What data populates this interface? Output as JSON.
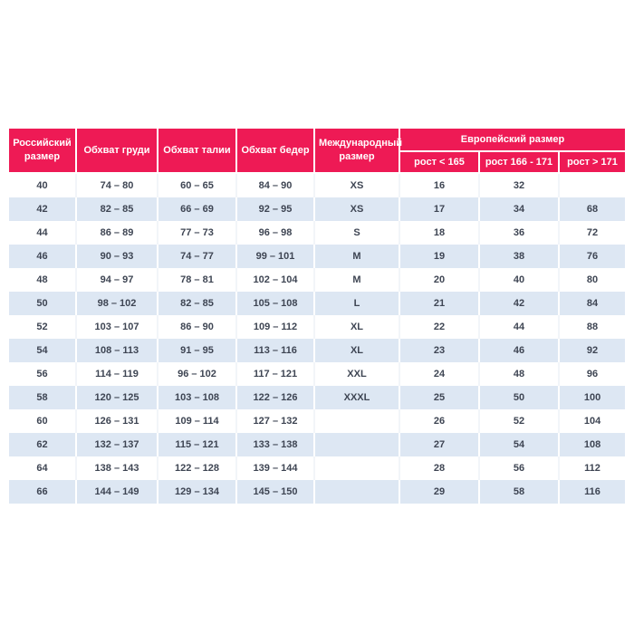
{
  "colors": {
    "header_bg": "#EE1A55",
    "header_text": "#FFFFFF",
    "row_alt_bg": "#DDE7F3",
    "cell_text": "#3E4553",
    "page_bg": "#FFFFFF"
  },
  "table": {
    "header": {
      "russian_size": "Российский размер",
      "chest": "Обхват груди",
      "waist": "Обхват талии",
      "hips": "Обхват бедер",
      "international_size": "Международный размер",
      "european_size": "Европейский размер",
      "height_lt_165": "рост < 165",
      "height_166_171": "рост 166 - 171",
      "height_gt_171": "рост > 171"
    },
    "rows": [
      [
        "40",
        "74 – 80",
        "60 – 65",
        "84 – 90",
        "XS",
        "16",
        "32",
        ""
      ],
      [
        "42",
        "82 – 85",
        "66 – 69",
        "92 – 95",
        "XS",
        "17",
        "34",
        "68"
      ],
      [
        "44",
        "86 – 89",
        "77 – 73",
        "96 – 98",
        "S",
        "18",
        "36",
        "72"
      ],
      [
        "46",
        "90 – 93",
        "74 – 77",
        "99 – 101",
        "M",
        "19",
        "38",
        "76"
      ],
      [
        "48",
        "94 – 97",
        "78 – 81",
        "102 – 104",
        "M",
        "20",
        "40",
        "80"
      ],
      [
        "50",
        "98 – 102",
        "82 – 85",
        "105 – 108",
        "L",
        "21",
        "42",
        "84"
      ],
      [
        "52",
        "103 – 107",
        "86 – 90",
        "109 – 112",
        "XL",
        "22",
        "44",
        "88"
      ],
      [
        "54",
        "108 – 113",
        "91 – 95",
        "113 – 116",
        "XL",
        "23",
        "46",
        "92"
      ],
      [
        "56",
        "114 – 119",
        "96 – 102",
        "117 – 121",
        "XXL",
        "24",
        "48",
        "96"
      ],
      [
        "58",
        "120 – 125",
        "103 – 108",
        "122 – 126",
        "XXXL",
        "25",
        "50",
        "100"
      ],
      [
        "60",
        "126 – 131",
        "109 – 114",
        "127 – 132",
        "",
        "26",
        "52",
        "104"
      ],
      [
        "62",
        "132 – 137",
        "115 – 121",
        "133 – 138",
        "",
        "27",
        "54",
        "108"
      ],
      [
        "64",
        "138 – 143",
        "122 – 128",
        "139 – 144",
        "",
        "28",
        "56",
        "112"
      ],
      [
        "66",
        "144 – 149",
        "129 – 134",
        "145 – 150",
        "",
        "29",
        "58",
        "116"
      ]
    ]
  }
}
